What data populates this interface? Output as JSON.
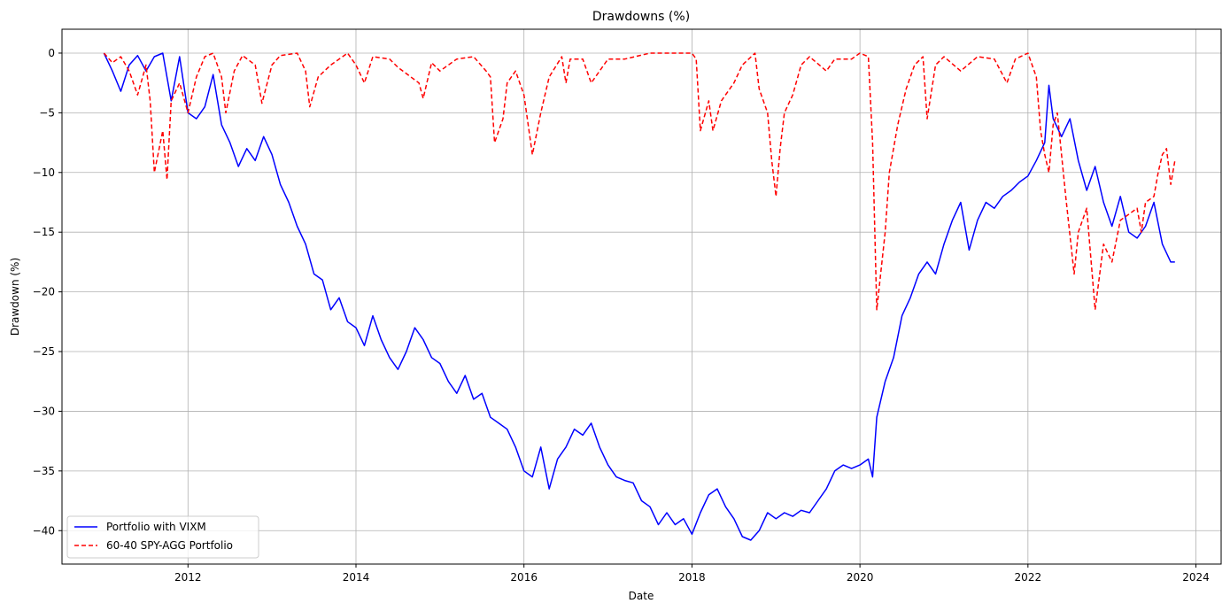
{
  "chart_data": {
    "type": "line",
    "title": "Drawdowns (%)",
    "xlabel": "Date",
    "ylabel": "Drawdown (%)",
    "xlim": [
      2010.5,
      2024.3
    ],
    "ylim": [
      -42.8,
      2.0
    ],
    "x_ticks": [
      2012,
      2014,
      2016,
      2018,
      2020,
      2022,
      2024
    ],
    "y_ticks": [
      0,
      -5,
      -10,
      -15,
      -20,
      -25,
      -30,
      -35,
      -40
    ],
    "grid": true,
    "legend_position": "lower-left",
    "series": [
      {
        "name": "Portfolio with VIXM",
        "color": "#0000ff",
        "line_style": "solid",
        "points": [
          [
            2011.0,
            0
          ],
          [
            2011.1,
            -1.5
          ],
          [
            2011.2,
            -3.2
          ],
          [
            2011.3,
            -1.0
          ],
          [
            2011.4,
            -0.2
          ],
          [
            2011.5,
            -1.5
          ],
          [
            2011.6,
            -0.3
          ],
          [
            2011.7,
            0
          ],
          [
            2011.8,
            -4.0
          ],
          [
            2011.9,
            -0.3
          ],
          [
            2012.0,
            -5.0
          ],
          [
            2012.1,
            -5.5
          ],
          [
            2012.2,
            -4.5
          ],
          [
            2012.3,
            -1.8
          ],
          [
            2012.4,
            -6.0
          ],
          [
            2012.5,
            -7.5
          ],
          [
            2012.6,
            -9.5
          ],
          [
            2012.7,
            -8.0
          ],
          [
            2012.8,
            -9.0
          ],
          [
            2012.9,
            -7.0
          ],
          [
            2013.0,
            -8.5
          ],
          [
            2013.1,
            -11.0
          ],
          [
            2013.2,
            -12.5
          ],
          [
            2013.3,
            -14.5
          ],
          [
            2013.4,
            -16.0
          ],
          [
            2013.5,
            -18.5
          ],
          [
            2013.6,
            -19.0
          ],
          [
            2013.7,
            -21.5
          ],
          [
            2013.8,
            -20.5
          ],
          [
            2013.9,
            -22.5
          ],
          [
            2014.0,
            -23.0
          ],
          [
            2014.1,
            -24.5
          ],
          [
            2014.2,
            -22.0
          ],
          [
            2014.3,
            -24.0
          ],
          [
            2014.4,
            -25.5
          ],
          [
            2014.5,
            -26.5
          ],
          [
            2014.6,
            -25.0
          ],
          [
            2014.7,
            -23.0
          ],
          [
            2014.8,
            -24.0
          ],
          [
            2014.9,
            -25.5
          ],
          [
            2015.0,
            -26.0
          ],
          [
            2015.1,
            -27.5
          ],
          [
            2015.2,
            -28.5
          ],
          [
            2015.3,
            -27.0
          ],
          [
            2015.4,
            -29.0
          ],
          [
            2015.5,
            -28.5
          ],
          [
            2015.6,
            -30.5
          ],
          [
            2015.7,
            -31.0
          ],
          [
            2015.8,
            -31.5
          ],
          [
            2015.9,
            -33.0
          ],
          [
            2016.0,
            -35.0
          ],
          [
            2016.1,
            -35.5
          ],
          [
            2016.2,
            -33.0
          ],
          [
            2016.3,
            -36.5
          ],
          [
            2016.4,
            -34.0
          ],
          [
            2016.5,
            -33.0
          ],
          [
            2016.6,
            -31.5
          ],
          [
            2016.7,
            -32.0
          ],
          [
            2016.8,
            -31.0
          ],
          [
            2016.9,
            -33.0
          ],
          [
            2017.0,
            -34.5
          ],
          [
            2017.1,
            -35.5
          ],
          [
            2017.2,
            -35.8
          ],
          [
            2017.3,
            -36.0
          ],
          [
            2017.4,
            -37.5
          ],
          [
            2017.5,
            -38.0
          ],
          [
            2017.6,
            -39.5
          ],
          [
            2017.7,
            -38.5
          ],
          [
            2017.8,
            -39.5
          ],
          [
            2017.9,
            -39.0
          ],
          [
            2018.0,
            -40.3
          ],
          [
            2018.1,
            -38.5
          ],
          [
            2018.2,
            -37.0
          ],
          [
            2018.3,
            -36.5
          ],
          [
            2018.4,
            -38.0
          ],
          [
            2018.5,
            -39.0
          ],
          [
            2018.6,
            -40.5
          ],
          [
            2018.7,
            -40.8
          ],
          [
            2018.8,
            -40.0
          ],
          [
            2018.9,
            -38.5
          ],
          [
            2019.0,
            -39.0
          ],
          [
            2019.1,
            -38.5
          ],
          [
            2019.2,
            -38.8
          ],
          [
            2019.3,
            -38.3
          ],
          [
            2019.4,
            -38.5
          ],
          [
            2019.5,
            -37.5
          ],
          [
            2019.6,
            -36.5
          ],
          [
            2019.7,
            -35.0
          ],
          [
            2019.8,
            -34.5
          ],
          [
            2019.9,
            -34.8
          ],
          [
            2020.0,
            -34.5
          ],
          [
            2020.1,
            -34.0
          ],
          [
            2020.15,
            -35.5
          ],
          [
            2020.2,
            -30.5
          ],
          [
            2020.3,
            -27.5
          ],
          [
            2020.4,
            -25.5
          ],
          [
            2020.5,
            -22.0
          ],
          [
            2020.6,
            -20.5
          ],
          [
            2020.7,
            -18.5
          ],
          [
            2020.8,
            -17.5
          ],
          [
            2020.9,
            -18.5
          ],
          [
            2021.0,
            -16.0
          ],
          [
            2021.1,
            -14.0
          ],
          [
            2021.2,
            -12.5
          ],
          [
            2021.3,
            -16.5
          ],
          [
            2021.4,
            -14.0
          ],
          [
            2021.5,
            -12.5
          ],
          [
            2021.6,
            -13.0
          ],
          [
            2021.7,
            -12.0
          ],
          [
            2021.8,
            -11.5
          ],
          [
            2021.9,
            -10.8
          ],
          [
            2022.0,
            -10.3
          ],
          [
            2022.1,
            -9.0
          ],
          [
            2022.2,
            -7.5
          ],
          [
            2022.25,
            -2.7
          ],
          [
            2022.3,
            -5.5
          ],
          [
            2022.4,
            -7.0
          ],
          [
            2022.5,
            -5.5
          ],
          [
            2022.6,
            -9.0
          ],
          [
            2022.7,
            -11.5
          ],
          [
            2022.8,
            -9.5
          ],
          [
            2022.9,
            -12.5
          ],
          [
            2023.0,
            -14.5
          ],
          [
            2023.1,
            -12.0
          ],
          [
            2023.2,
            -15.0
          ],
          [
            2023.3,
            -15.5
          ],
          [
            2023.4,
            -14.5
          ],
          [
            2023.5,
            -12.5
          ],
          [
            2023.6,
            -16.0
          ],
          [
            2023.7,
            -17.5
          ],
          [
            2023.75,
            -17.5
          ]
        ]
      },
      {
        "name": "60-40 SPY-AGG Portfolio",
        "color": "#ff0000",
        "line_style": "dashed",
        "points": [
          [
            2011.0,
            0
          ],
          [
            2011.1,
            -0.8
          ],
          [
            2011.2,
            -0.3
          ],
          [
            2011.3,
            -1.5
          ],
          [
            2011.4,
            -3.5
          ],
          [
            2011.5,
            -1.0
          ],
          [
            2011.55,
            -4.0
          ],
          [
            2011.6,
            -10.0
          ],
          [
            2011.7,
            -6.5
          ],
          [
            2011.75,
            -10.6
          ],
          [
            2011.8,
            -4.0
          ],
          [
            2011.9,
            -2.5
          ],
          [
            2012.0,
            -5.0
          ],
          [
            2012.1,
            -2.0
          ],
          [
            2012.2,
            -0.3
          ],
          [
            2012.3,
            0
          ],
          [
            2012.4,
            -2.0
          ],
          [
            2012.45,
            -5.0
          ],
          [
            2012.55,
            -1.5
          ],
          [
            2012.65,
            -0.2
          ],
          [
            2012.8,
            -1.0
          ],
          [
            2012.88,
            -4.2
          ],
          [
            2013.0,
            -1.0
          ],
          [
            2013.1,
            -0.2
          ],
          [
            2013.3,
            0
          ],
          [
            2013.4,
            -1.5
          ],
          [
            2013.45,
            -4.5
          ],
          [
            2013.55,
            -2.0
          ],
          [
            2013.7,
            -1.0
          ],
          [
            2013.9,
            0
          ],
          [
            2014.0,
            -1.0
          ],
          [
            2014.1,
            -2.5
          ],
          [
            2014.2,
            -0.3
          ],
          [
            2014.4,
            -0.5
          ],
          [
            2014.5,
            -1.2
          ],
          [
            2014.75,
            -2.5
          ],
          [
            2014.8,
            -3.8
          ],
          [
            2014.9,
            -0.8
          ],
          [
            2015.0,
            -1.5
          ],
          [
            2015.2,
            -0.5
          ],
          [
            2015.4,
            -0.3
          ],
          [
            2015.55,
            -1.5
          ],
          [
            2015.6,
            -2.0
          ],
          [
            2015.65,
            -7.5
          ],
          [
            2015.75,
            -5.5
          ],
          [
            2015.8,
            -2.5
          ],
          [
            2015.9,
            -1.5
          ],
          [
            2016.0,
            -3.5
          ],
          [
            2016.1,
            -8.5
          ],
          [
            2016.2,
            -5.0
          ],
          [
            2016.3,
            -2.0
          ],
          [
            2016.45,
            -0.3
          ],
          [
            2016.5,
            -2.5
          ],
          [
            2016.55,
            -0.5
          ],
          [
            2016.7,
            -0.5
          ],
          [
            2016.8,
            -2.5
          ],
          [
            2016.9,
            -1.5
          ],
          [
            2017.0,
            -0.5
          ],
          [
            2017.2,
            -0.5
          ],
          [
            2017.5,
            0
          ],
          [
            2017.8,
            0
          ],
          [
            2018.0,
            0
          ],
          [
            2018.05,
            -0.5
          ],
          [
            2018.1,
            -6.5
          ],
          [
            2018.2,
            -4.0
          ],
          [
            2018.25,
            -6.5
          ],
          [
            2018.35,
            -4.0
          ],
          [
            2018.5,
            -2.5
          ],
          [
            2018.6,
            -1.0
          ],
          [
            2018.75,
            0
          ],
          [
            2018.8,
            -3.0
          ],
          [
            2018.9,
            -5.0
          ],
          [
            2018.95,
            -9.0
          ],
          [
            2019.0,
            -12.0
          ],
          [
            2019.05,
            -8.0
          ],
          [
            2019.1,
            -5.0
          ],
          [
            2019.2,
            -3.5
          ],
          [
            2019.3,
            -1.0
          ],
          [
            2019.4,
            -0.3
          ],
          [
            2019.6,
            -1.5
          ],
          [
            2019.7,
            -0.5
          ],
          [
            2019.9,
            -0.5
          ],
          [
            2020.0,
            0
          ],
          [
            2020.1,
            -0.3
          ],
          [
            2020.15,
            -7.5
          ],
          [
            2020.2,
            -21.5
          ],
          [
            2020.3,
            -15.0
          ],
          [
            2020.35,
            -10.0
          ],
          [
            2020.45,
            -6.0
          ],
          [
            2020.55,
            -3.0
          ],
          [
            2020.65,
            -1.0
          ],
          [
            2020.75,
            -0.3
          ],
          [
            2020.8,
            -5.5
          ],
          [
            2020.9,
            -1.0
          ],
          [
            2021.0,
            -0.3
          ],
          [
            2021.2,
            -1.5
          ],
          [
            2021.4,
            -0.3
          ],
          [
            2021.6,
            -0.5
          ],
          [
            2021.75,
            -2.5
          ],
          [
            2021.85,
            -0.5
          ],
          [
            2022.0,
            0
          ],
          [
            2022.1,
            -2.0
          ],
          [
            2022.15,
            -6.5
          ],
          [
            2022.2,
            -8.5
          ],
          [
            2022.25,
            -10.0
          ],
          [
            2022.3,
            -6.0
          ],
          [
            2022.35,
            -5.0
          ],
          [
            2022.45,
            -12.0
          ],
          [
            2022.55,
            -18.5
          ],
          [
            2022.6,
            -15.0
          ],
          [
            2022.7,
            -13.0
          ],
          [
            2022.8,
            -21.5
          ],
          [
            2022.9,
            -16.0
          ],
          [
            2023.0,
            -17.5
          ],
          [
            2023.1,
            -14.0
          ],
          [
            2023.2,
            -13.5
          ],
          [
            2023.3,
            -13.0
          ],
          [
            2023.35,
            -15.0
          ],
          [
            2023.4,
            -12.5
          ],
          [
            2023.5,
            -12.0
          ],
          [
            2023.55,
            -10.0
          ],
          [
            2023.6,
            -8.5
          ],
          [
            2023.65,
            -8.0
          ],
          [
            2023.7,
            -11.0
          ],
          [
            2023.75,
            -9.0
          ]
        ]
      }
    ]
  }
}
